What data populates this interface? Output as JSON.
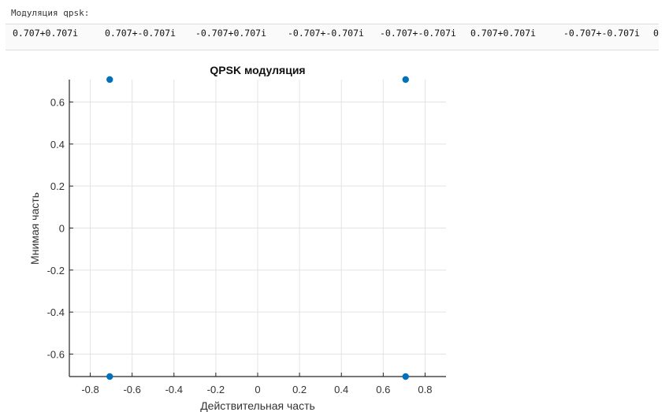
{
  "output": {
    "label": "Модуляция qpsk:",
    "values": [
      "0.707+0.707i",
      "0.707+-0.707i",
      "-0.707+0.707i",
      "-0.707+-0.707i",
      "-0.707+-0.707i",
      "0.707+0.707i",
      "-0.707+-0.707i",
      "0"
    ]
  },
  "chart_data": {
    "type": "scatter",
    "title": "QPSK модуляция",
    "xlabel": "Действительная часть",
    "ylabel": "Мнимая часть",
    "xlim": [
      -0.9,
      0.9
    ],
    "ylim": [
      -0.707,
      0.707
    ],
    "x_ticks": [
      -0.8,
      -0.6,
      -0.4,
      -0.2,
      0,
      0.2,
      0.4,
      0.6,
      0.8
    ],
    "y_ticks": [
      -0.6,
      -0.4,
      -0.2,
      0,
      0.2,
      0.4,
      0.6
    ],
    "x_tick_labels": [
      "-0.8",
      "-0.6",
      "-0.4",
      "-0.2",
      "0",
      "0.2",
      "0.4",
      "0.6",
      "0.8"
    ],
    "y_tick_labels": [
      "-0.6",
      "-0.4",
      "-0.2",
      "0",
      "0.2",
      "0.4",
      "0.6"
    ],
    "grid": true,
    "marker_color": "#0072BD",
    "points": [
      {
        "x": -0.707,
        "y": 0.707
      },
      {
        "x": 0.707,
        "y": 0.707
      },
      {
        "x": -0.707,
        "y": -0.707
      },
      {
        "x": 0.707,
        "y": -0.707
      }
    ]
  }
}
